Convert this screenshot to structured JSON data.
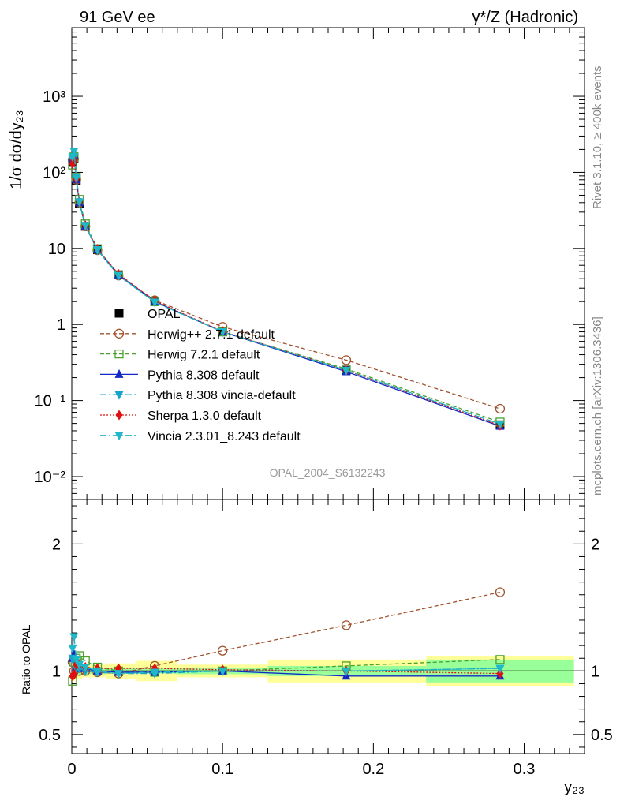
{
  "header": {
    "left": "91 GeV ee",
    "right": "γ*/Z (Hadronic)"
  },
  "side_labels": {
    "rivet": "Rivet 3.1.10, ≥ 400k events",
    "mcplots": "mcplots.cern.ch [arXiv:1306.3436]"
  },
  "watermark": "OPAL_2004_S6132243",
  "chart_data": [
    {
      "type": "line",
      "panel": "main",
      "yscale": "log",
      "ylabel": "1/σ dσ/dy₂₃",
      "xlabel": "y₂₃",
      "xlim": [
        0,
        0.34
      ],
      "ylim": [
        0.005,
        8000
      ],
      "ytick_labels": [
        "10⁻²",
        "10⁻¹",
        "1",
        "10",
        "10²",
        "10³"
      ],
      "ytick_values": [
        0.01,
        0.1,
        1,
        10,
        100,
        1000
      ],
      "x": [
        0.0005,
        0.0015,
        0.003,
        0.005,
        0.009,
        0.017,
        0.031,
        0.055,
        0.1,
        0.182,
        0.284
      ],
      "series": [
        {
          "name": "OPAL",
          "color": "#000000",
          "marker": "square-filled",
          "line": "none",
          "values": [
            135,
            150,
            78,
            39,
            19.5,
            9.6,
            4.5,
            2.0,
            0.8,
            0.25,
            0.048
          ]
        },
        {
          "name": "Herwig++ 2.7.1 default",
          "color": "#a0522d",
          "marker": "circle-open",
          "line": "dashed",
          "values": [
            145,
            150,
            80,
            40,
            19.5,
            9.5,
            4.4,
            2.08,
            0.93,
            0.34,
            0.078
          ]
        },
        {
          "name": "Herwig 7.2.1 default",
          "color": "#4aa02c",
          "marker": "square-open",
          "line": "dashed",
          "values": [
            125,
            160,
            86,
            44,
            21,
            9.9,
            4.5,
            2.0,
            0.8,
            0.26,
            0.052
          ]
        },
        {
          "name": "Pythia 8.308 default",
          "color": "#1428c8",
          "marker": "triangle-up",
          "line": "solid",
          "values": [
            150,
            170,
            80,
            40,
            19.8,
            9.6,
            4.5,
            2.0,
            0.8,
            0.24,
            0.046
          ]
        },
        {
          "name": "Pythia 8.308 vincia-default",
          "color": "#18a4c8",
          "marker": "triangle-down",
          "line": "dashdot",
          "values": [
            150,
            160,
            80,
            40,
            19.6,
            9.5,
            4.4,
            1.96,
            0.8,
            0.25,
            0.049
          ]
        },
        {
          "name": "Sherpa 1.3.0 default",
          "color": "#e01010",
          "marker": "diamond",
          "line": "dotted",
          "values": [
            130,
            145,
            82,
            41,
            20,
            9.8,
            4.6,
            2.04,
            0.81,
            0.25,
            0.047
          ]
        },
        {
          "name": "Vincia 2.3.01_8.243 default",
          "color": "#20b8c8",
          "marker": "triangle-down",
          "line": "dashdot",
          "values": [
            160,
            190,
            85,
            41,
            20,
            9.6,
            4.4,
            1.97,
            0.8,
            0.25,
            0.049
          ]
        }
      ]
    },
    {
      "type": "line",
      "panel": "ratio",
      "ylabel": "Ratio to OPAL",
      "xlabel": "y₂₃",
      "xlim": [
        0,
        0.34
      ],
      "ylim": [
        0.35,
        2.35
      ],
      "ytick_values": [
        0.5,
        1,
        2
      ],
      "ytick_labels": [
        "0.5",
        "1",
        "2"
      ],
      "xtick_values": [
        0,
        0.1,
        0.2,
        0.3
      ],
      "xtick_labels": [
        "0",
        "0.1",
        "0.2",
        "0.3"
      ],
      "bands": [
        {
          "x0": 0.0,
          "x1": 0.0025,
          "stat": 0.04,
          "tot": 0.08
        },
        {
          "x0": 0.0025,
          "x1": 0.007,
          "stat": 0.03,
          "tot": 0.06
        },
        {
          "x0": 0.007,
          "x1": 0.013,
          "stat": 0.025,
          "tot": 0.05
        },
        {
          "x0": 0.013,
          "x1": 0.023,
          "stat": 0.025,
          "tot": 0.05
        },
        {
          "x0": 0.023,
          "x1": 0.043,
          "stat": 0.02,
          "tot": 0.06
        },
        {
          "x0": 0.043,
          "x1": 0.07,
          "stat": 0.02,
          "tot": 0.08
        },
        {
          "x0": 0.07,
          "x1": 0.13,
          "stat": 0.025,
          "tot": 0.05
        },
        {
          "x0": 0.13,
          "x1": 0.235,
          "stat": 0.04,
          "tot": 0.09
        },
        {
          "x0": 0.235,
          "x1": 0.333,
          "stat": 0.09,
          "tot": 0.12
        }
      ],
      "x": [
        0.0005,
        0.0015,
        0.003,
        0.005,
        0.009,
        0.017,
        0.031,
        0.055,
        0.1,
        0.182,
        0.284
      ],
      "series": [
        {
          "name": "Herwig++ 2.7.1 default",
          "values": [
            1.07,
            1.0,
            1.02,
            1.0,
            1.0,
            0.99,
            0.98,
            1.04,
            1.16,
            1.36,
            1.62
          ]
        },
        {
          "name": "Herwig 7.2.1 default",
          "values": [
            0.92,
            1.07,
            1.1,
            1.12,
            1.08,
            1.03,
            1.0,
            0.99,
            1.0,
            1.04,
            1.09
          ]
        },
        {
          "name": "Pythia 8.308 default",
          "values": [
            1.1,
            1.13,
            1.03,
            1.02,
            1.02,
            1.0,
            0.99,
            0.99,
            1.0,
            0.96,
            0.96
          ]
        },
        {
          "name": "Pythia 8.308 vincia-default",
          "values": [
            1.1,
            1.07,
            1.02,
            1.02,
            1.0,
            0.99,
            0.98,
            0.98,
            1.0,
            1.0,
            1.02
          ]
        },
        {
          "name": "Sherpa 1.3.0 default",
          "values": [
            0.96,
            0.97,
            1.05,
            1.05,
            1.03,
            1.02,
            1.02,
            1.02,
            1.01,
            1.0,
            0.98
          ]
        },
        {
          "name": "Vincia 2.3.01_8.243 default",
          "values": [
            1.18,
            1.27,
            1.09,
            1.05,
            1.03,
            1.0,
            0.98,
            0.99,
            1.0,
            1.0,
            1.02
          ]
        }
      ]
    }
  ]
}
